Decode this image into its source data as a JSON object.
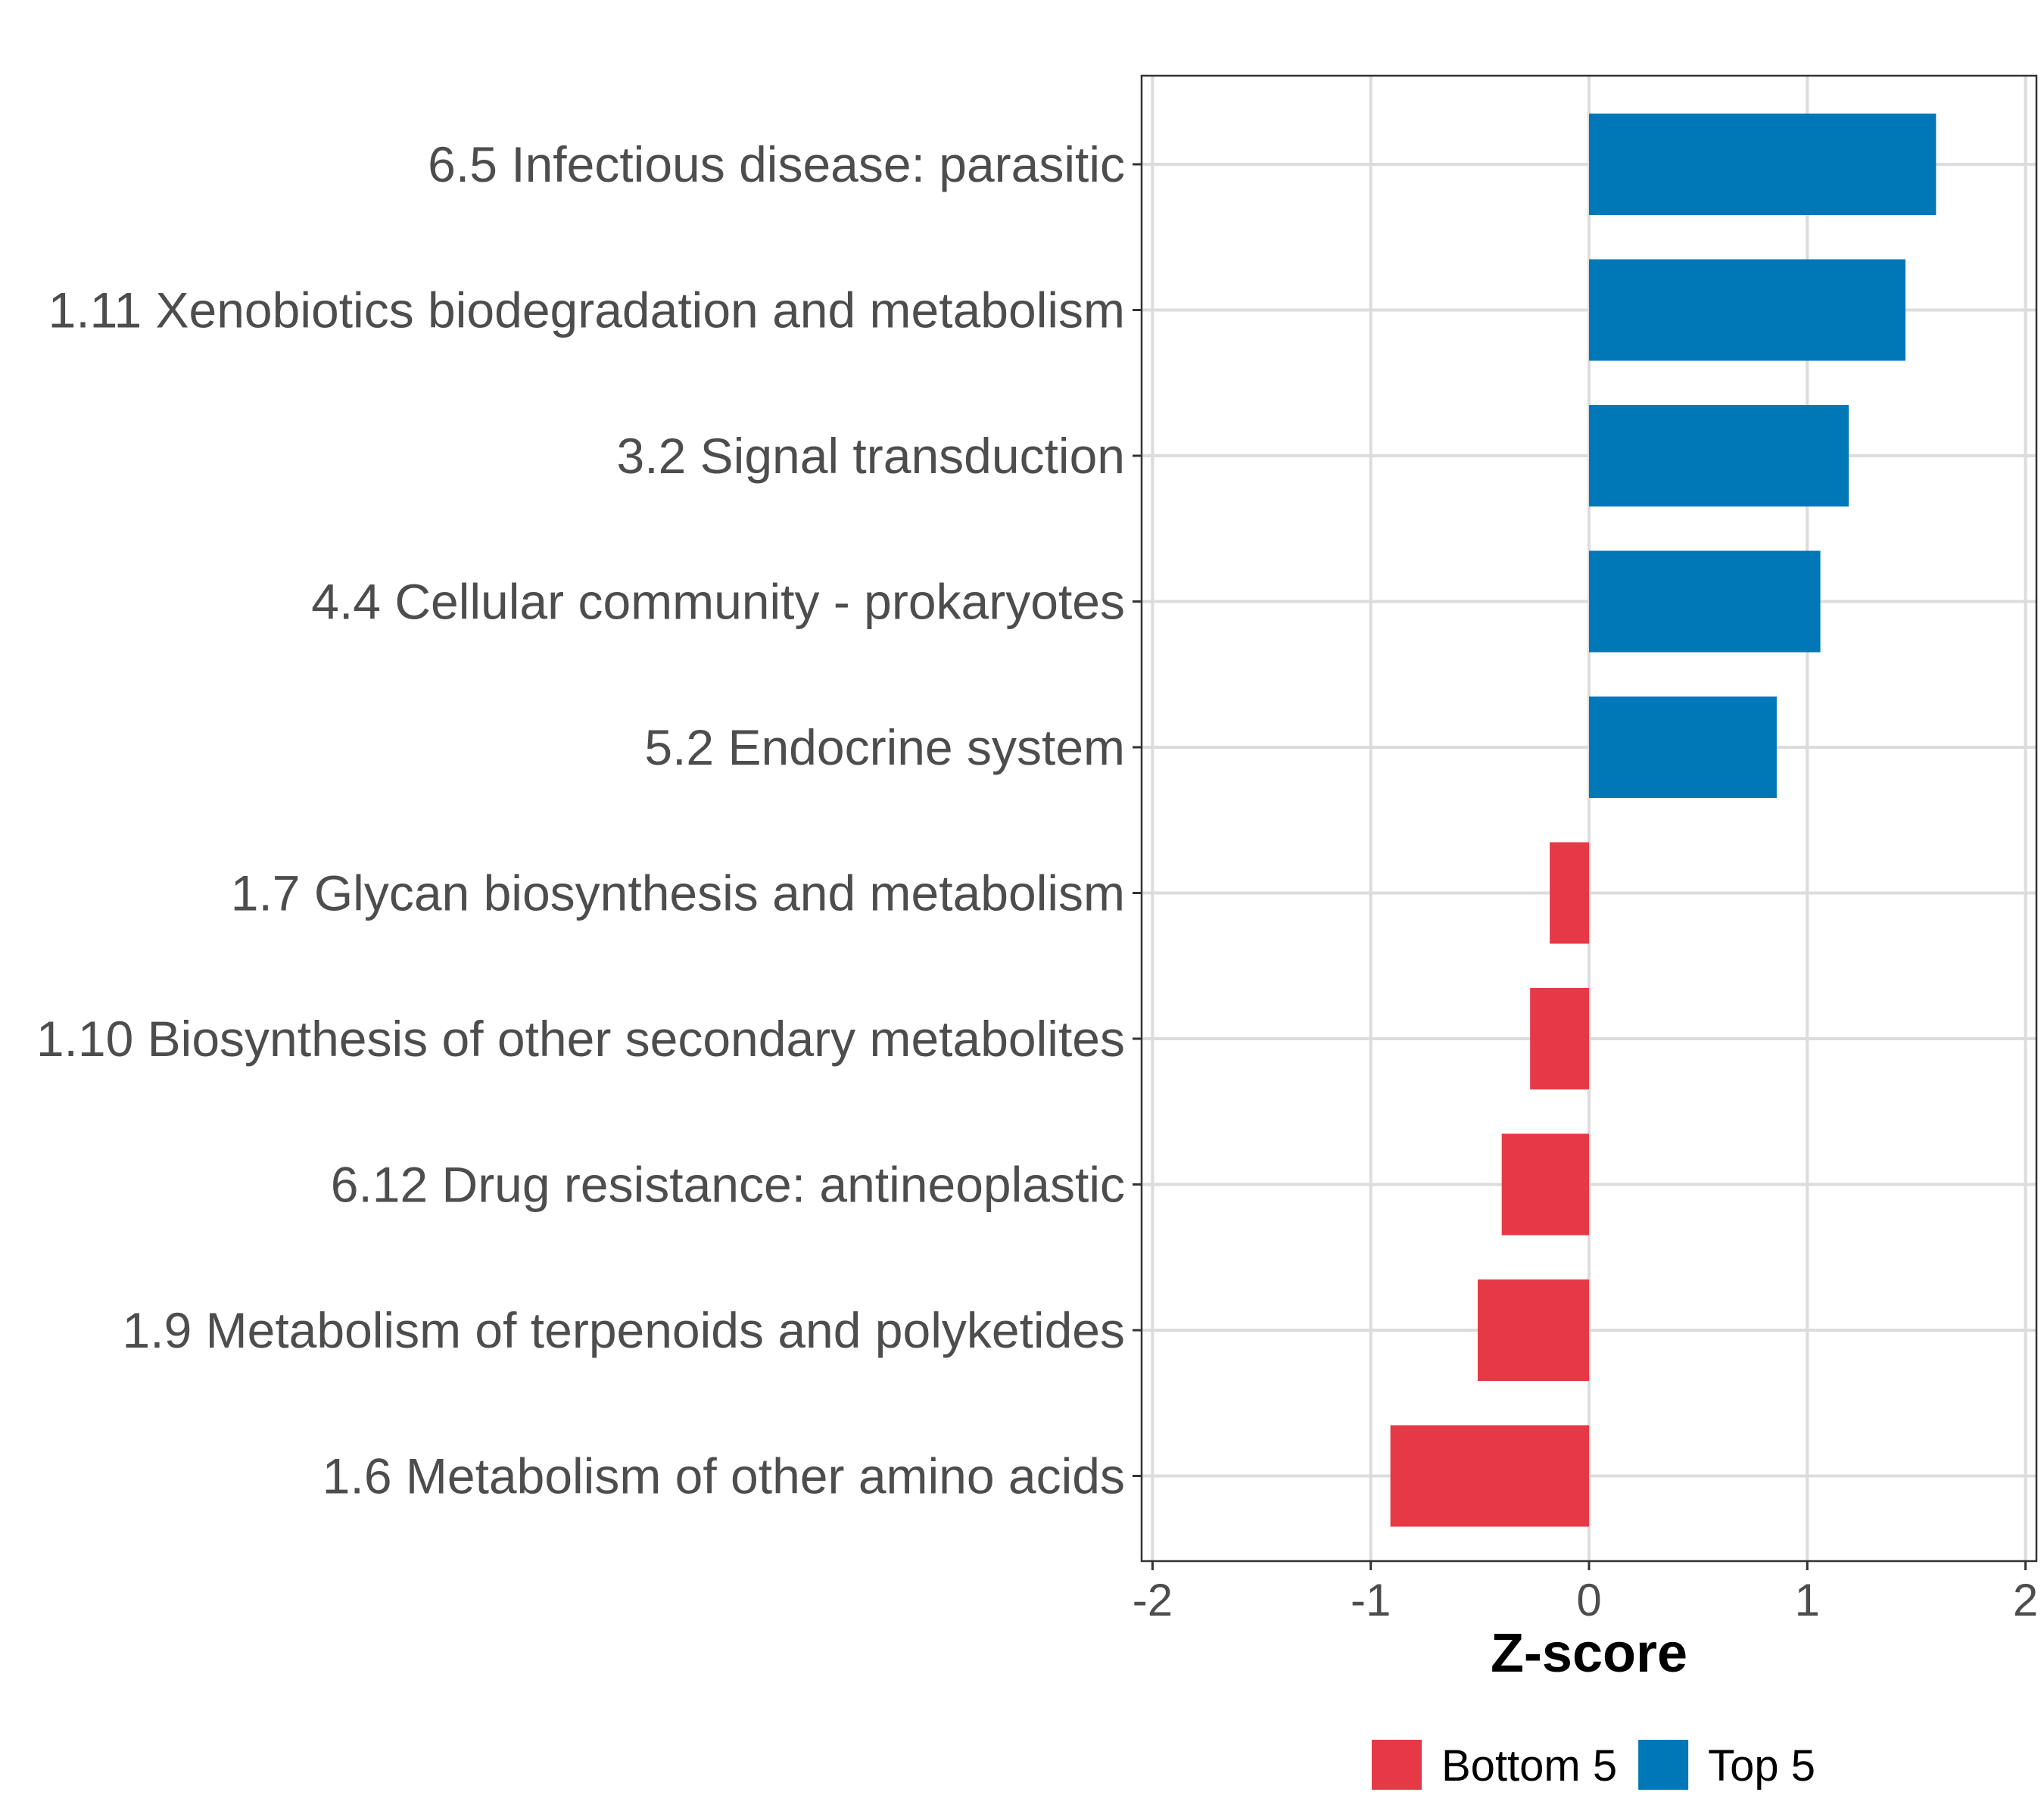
{
  "chart_data": {
    "type": "bar",
    "orientation": "horizontal",
    "title": "",
    "xlabel": "Z-score",
    "ylabel": "",
    "xlim": [
      -2.05,
      2.05
    ],
    "x_ticks": [
      -2,
      -1,
      0,
      1,
      2
    ],
    "x_tick_labels": [
      "-2",
      "-1",
      "0",
      "1",
      "2"
    ],
    "grid": true,
    "legend_position": "bottom",
    "colors": {
      "Bottom 5": "#e63946",
      "Top 5": "#0077b6"
    },
    "legend": [
      {
        "name": "Bottom 5",
        "color": "#e63946"
      },
      {
        "name": "Top 5",
        "color": "#0077b6"
      }
    ],
    "categories": [
      "6.5 Infectious disease: parasitic",
      "1.11 Xenobiotics biodegradation and metabolism",
      "3.2 Signal transduction",
      "4.4 Cellular community - prokaryotes",
      "5.2 Endocrine system",
      "1.7 Glycan biosynthesis and metabolism",
      "1.10 Biosynthesis of other secondary metabolites",
      "6.12 Drug resistance: antineoplastic",
      "1.9 Metabolism of terpenoids and polyketides",
      "1.6 Metabolism of other amino acids"
    ],
    "values": [
      1.59,
      1.45,
      1.19,
      1.06,
      0.86,
      -0.18,
      -0.27,
      -0.4,
      -0.51,
      -0.91
    ],
    "groups": [
      "Top 5",
      "Top 5",
      "Top 5",
      "Top 5",
      "Top 5",
      "Bottom 5",
      "Bottom 5",
      "Bottom 5",
      "Bottom 5",
      "Bottom 5"
    ]
  }
}
